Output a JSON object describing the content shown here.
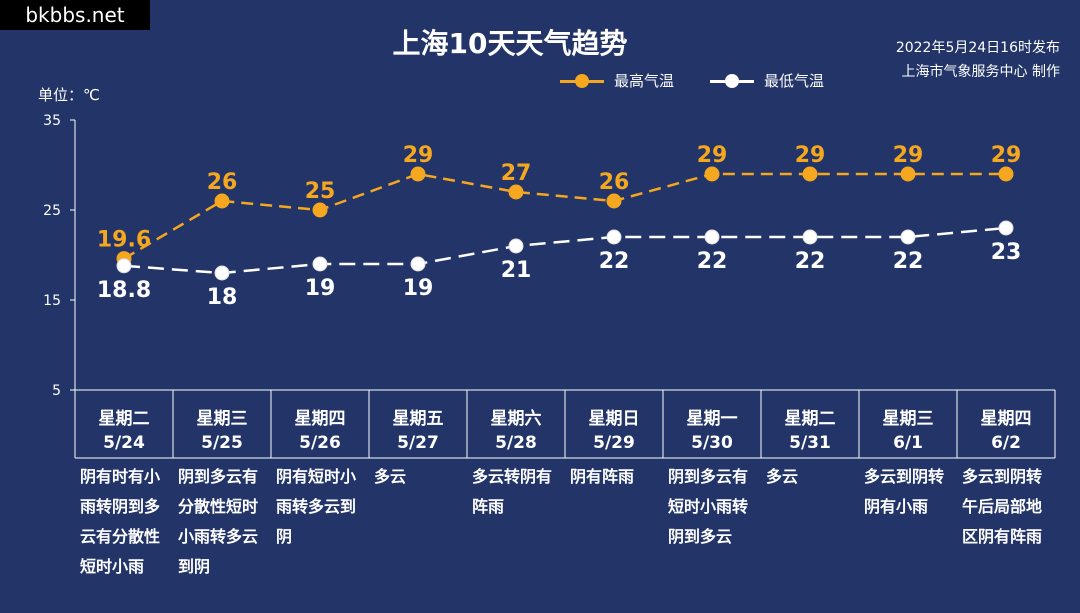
{
  "watermark": "bkbbs.net",
  "title": "上海10天天气趋势",
  "publish": {
    "line1": "2022年5月24日16时发布",
    "line2": "上海市气象服务中心 制作"
  },
  "unit_label": "单位：℃",
  "colors": {
    "high": "#f4a71f",
    "low": "#ffffff",
    "background": "#223468"
  },
  "chart_data": {
    "type": "line",
    "categories": [
      "5/24",
      "5/25",
      "5/26",
      "5/27",
      "5/28",
      "5/29",
      "5/30",
      "5/31",
      "6/1",
      "6/2"
    ],
    "weekdays": [
      "星期二",
      "星期三",
      "星期四",
      "星期五",
      "星期六",
      "星期日",
      "星期一",
      "星期二",
      "星期三",
      "星期四"
    ],
    "ylim": [
      5,
      35
    ],
    "yticks": [
      "5",
      "15",
      "25",
      "35"
    ],
    "series": [
      {
        "name": "最高气温",
        "values": [
          19.6,
          26,
          25,
          29,
          27,
          26,
          29,
          29,
          29,
          29
        ],
        "labels": [
          "19.6",
          "26",
          "25",
          "29",
          "27",
          "26",
          "29",
          "29",
          "29",
          "29"
        ],
        "color": "#f4a71f"
      },
      {
        "name": "最低气温",
        "values": [
          18.8,
          18,
          19,
          19,
          21,
          22,
          22,
          22,
          22,
          23
        ],
        "labels": [
          "18.8",
          "18",
          "19",
          "19",
          "21",
          "22",
          "22",
          "22",
          "22",
          "23"
        ],
        "color": "#ffffff"
      }
    ],
    "weather": [
      "阴有时有小雨转阴到多云有分散性短时小雨",
      "阴到多云有分散性短时小雨转多云到阴",
      "阴有短时小雨转多云到阴",
      "多云",
      "多云转阴有阵雨",
      "阴有阵雨",
      "阴到多云有短时小雨转阴到多云",
      "多云",
      "多云到阴转阴有小雨",
      "多云到阴转午后局部地区阴有阵雨"
    ]
  }
}
